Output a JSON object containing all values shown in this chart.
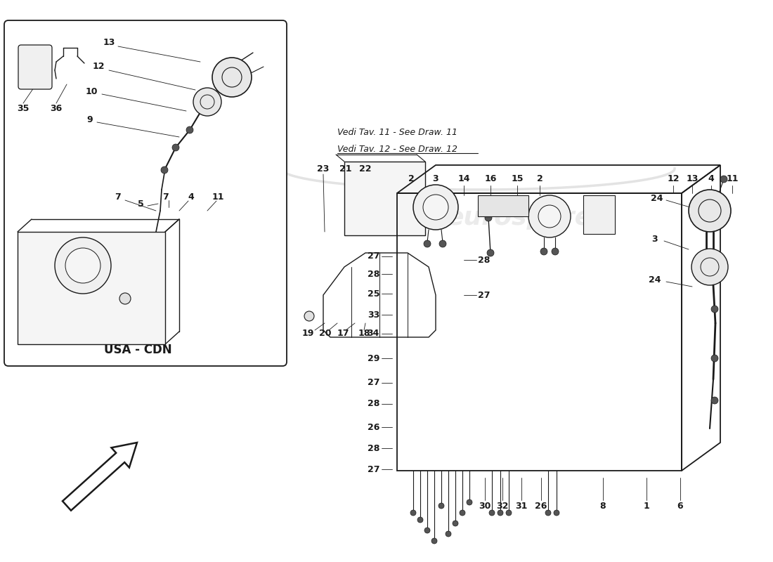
{
  "bg_color": "#ffffff",
  "line_color": "#1a1a1a",
  "text_color": "#1a1a1a",
  "watermark_color": "#cccccc",
  "watermark_alpha": 0.38,
  "note_text1": "Vedi Tav. 11 - See Draw. 11",
  "note_text2": "Vedi Tav. 12 - See Draw. 12",
  "usa_cdn_label": "USA - CDN"
}
